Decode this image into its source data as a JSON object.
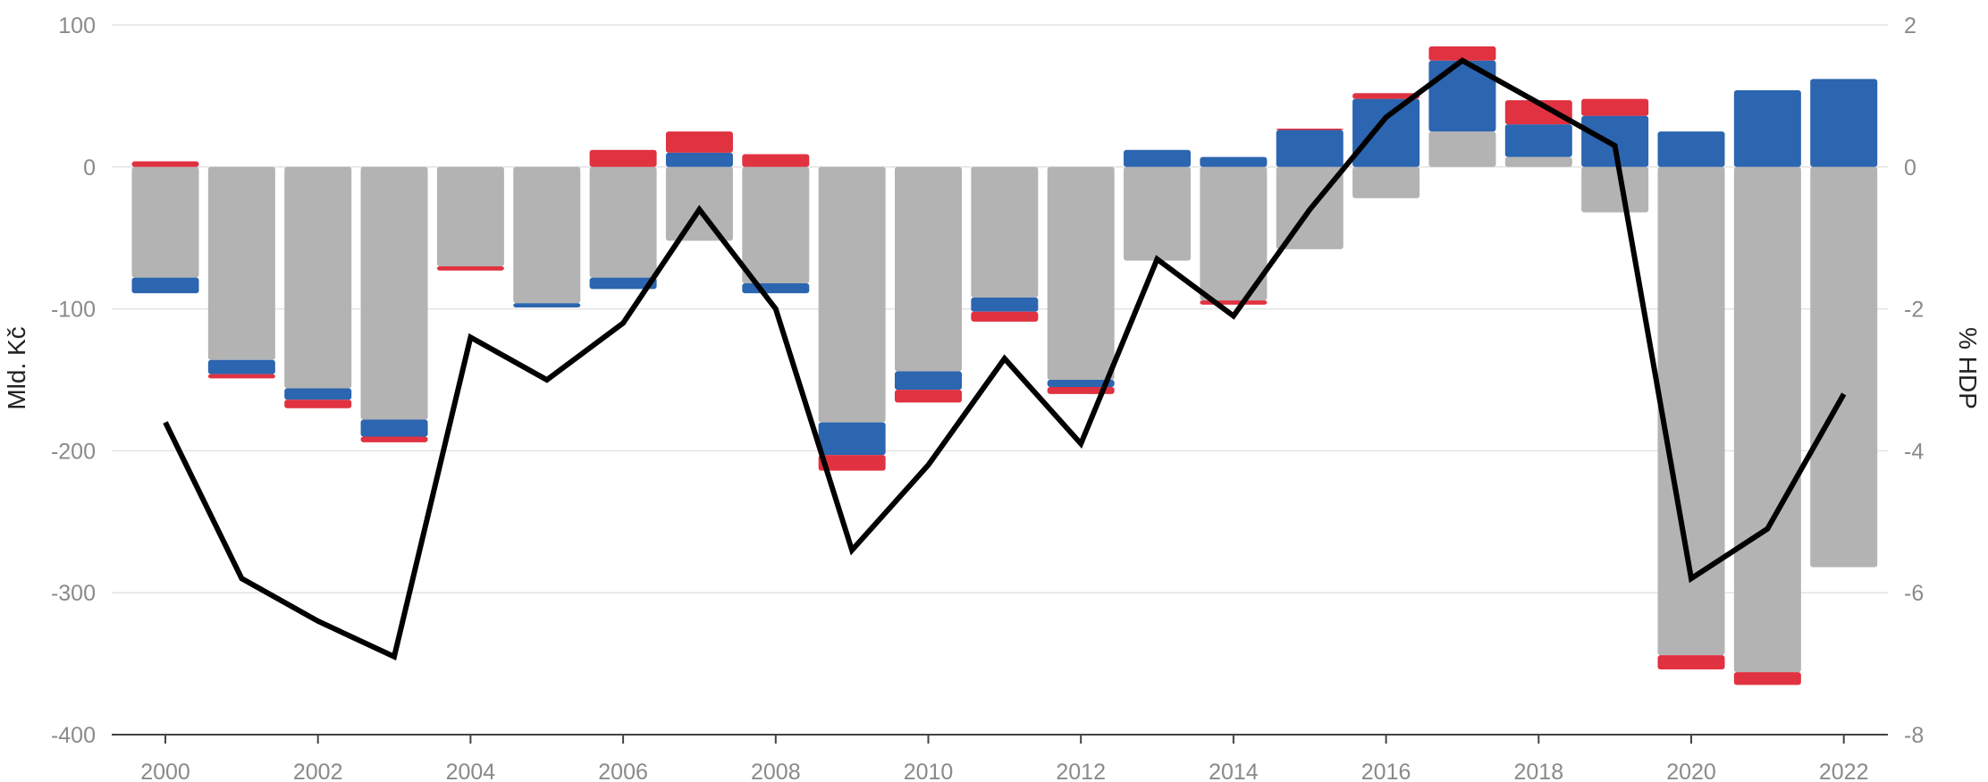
{
  "chart_data": {
    "type": "bar",
    "stacked": true,
    "categories": [
      "2000",
      "2001",
      "2002",
      "2003",
      "2004",
      "2005",
      "2006",
      "2007",
      "2008",
      "2009",
      "2010",
      "2011",
      "2012",
      "2013",
      "2014",
      "2015",
      "2016",
      "2017",
      "2018",
      "2019",
      "2020",
      "2021",
      "2022"
    ],
    "x_tick_labels": [
      "2000",
      "2002",
      "2004",
      "2006",
      "2008",
      "2010",
      "2012",
      "2014",
      "2016",
      "2018",
      "2020",
      "2022"
    ],
    "series": [
      {
        "color": "#b3b3b3",
        "values": [
          -78,
          -136,
          -156,
          -178,
          -70,
          -96,
          -78,
          -52,
          -82,
          -180,
          -144,
          -92,
          -150,
          -66,
          -94,
          -58,
          -22,
          25,
          7,
          -32,
          -344,
          -356,
          -282
        ]
      },
      {
        "color": "#2c65b0",
        "values": [
          -11,
          -10,
          -8,
          -12,
          0,
          -3,
          -8,
          10,
          -7,
          -23,
          -13,
          -10,
          -5,
          12,
          7,
          26,
          48,
          50,
          23,
          36,
          25,
          54,
          62
        ]
      },
      {
        "color": "#e03240",
        "values": [
          4,
          -3,
          -6,
          -4,
          -3,
          0,
          12,
          15,
          9,
          -11,
          -9,
          -7,
          -5,
          0,
          -3,
          1,
          4,
          10,
          17,
          12,
          -10,
          -9,
          0
        ]
      }
    ],
    "line_series": {
      "axis": "right",
      "color": "#000000",
      "values": [
        -3.6,
        -5.8,
        -6.4,
        -6.9,
        -2.4,
        -3.0,
        -2.2,
        -0.6,
        -2.0,
        -5.4,
        -4.2,
        -2.7,
        -3.9,
        -1.3,
        -2.1,
        -0.6,
        0.7,
        1.5,
        0.9,
        0.3,
        -5.8,
        -5.1,
        -3.2
      ]
    },
    "ylabel": "Mld. Kč",
    "y2label": "% HDP",
    "ylim": [
      -400,
      100
    ],
    "y2lim": [
      -8,
      2
    ],
    "y_ticks": [
      100,
      0,
      -100,
      -200,
      -300,
      -400
    ],
    "y2_ticks": [
      2,
      0,
      -2,
      -4,
      -6,
      -8
    ],
    "grid": true
  }
}
